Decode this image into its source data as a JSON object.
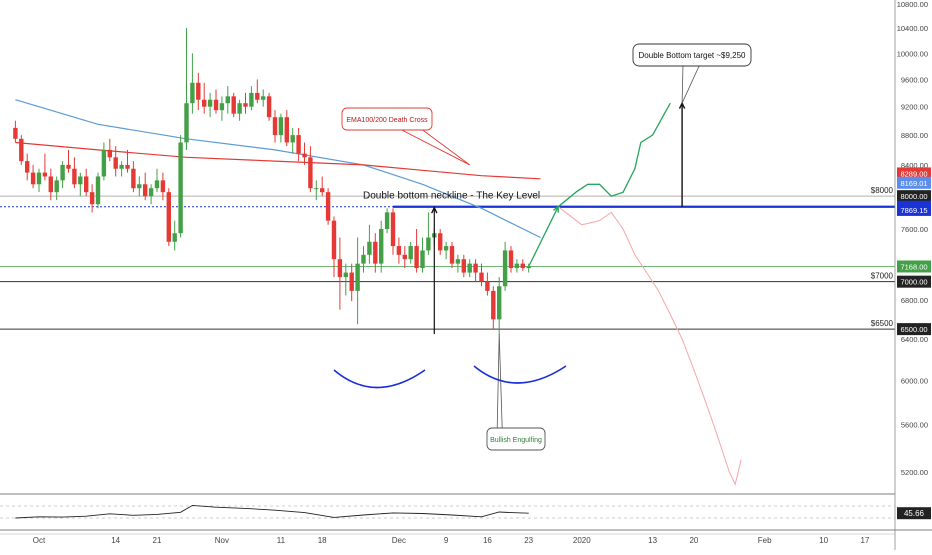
{
  "chart_data": {
    "type": "candlestick",
    "price_axis": {
      "ticks": [
        "10800.00",
        "10400.00",
        "10000.00",
        "9600.00",
        "9200.00",
        "8800.00",
        "8400.00",
        "7600.00",
        "6800.00",
        "6400.00",
        "6000.00",
        "5600.00",
        "5200.00"
      ],
      "tick_values": [
        10800,
        10400,
        10000,
        9600,
        9200,
        8800,
        8400,
        7600,
        6800,
        6400,
        6000,
        5600,
        5200
      ],
      "range": [
        4800,
        10900
      ],
      "scale": "log"
    },
    "time_axis": {
      "labels": [
        "Oct",
        "14",
        "21",
        "Nov",
        "11",
        "18",
        "Dec",
        "9",
        "16",
        "23",
        "2020",
        "13",
        "20",
        "Feb",
        "10",
        "17"
      ],
      "positions_days": [
        0,
        13,
        20,
        31,
        41,
        48,
        61,
        69,
        76,
        83,
        92,
        104,
        111,
        123,
        133,
        140
      ]
    },
    "candles": [
      {
        "d": -4,
        "o": 8900,
        "h": 9000,
        "l": 8700,
        "c": 8750
      },
      {
        "d": -3,
        "o": 8750,
        "h": 8800,
        "l": 8400,
        "c": 8450
      },
      {
        "d": -2,
        "o": 8450,
        "h": 8550,
        "l": 8200,
        "c": 8300
      },
      {
        "d": -1,
        "o": 8300,
        "h": 8400,
        "l": 8100,
        "c": 8150
      },
      {
        "d": 0,
        "o": 8150,
        "h": 8350,
        "l": 8050,
        "c": 8300
      },
      {
        "d": 1,
        "o": 8300,
        "h": 8550,
        "l": 8200,
        "c": 8250
      },
      {
        "d": 2,
        "o": 8250,
        "h": 8350,
        "l": 7950,
        "c": 8050
      },
      {
        "d": 3,
        "o": 8050,
        "h": 8250,
        "l": 7950,
        "c": 8200
      },
      {
        "d": 4,
        "o": 8200,
        "h": 8450,
        "l": 8100,
        "c": 8400
      },
      {
        "d": 5,
        "o": 8400,
        "h": 8600,
        "l": 8300,
        "c": 8350
      },
      {
        "d": 6,
        "o": 8350,
        "h": 8500,
        "l": 8100,
        "c": 8150
      },
      {
        "d": 7,
        "o": 8150,
        "h": 8300,
        "l": 8000,
        "c": 8250
      },
      {
        "d": 8,
        "o": 8250,
        "h": 8350,
        "l": 8000,
        "c": 8050
      },
      {
        "d": 9,
        "o": 8050,
        "h": 8150,
        "l": 7800,
        "c": 7900
      },
      {
        "d": 10,
        "o": 7900,
        "h": 8300,
        "l": 7850,
        "c": 8250
      },
      {
        "d": 11,
        "o": 8250,
        "h": 8700,
        "l": 8200,
        "c": 8600
      },
      {
        "d": 12,
        "o": 8600,
        "h": 8750,
        "l": 8450,
        "c": 8500
      },
      {
        "d": 13,
        "o": 8500,
        "h": 8650,
        "l": 8250,
        "c": 8350
      },
      {
        "d": 14,
        "o": 8350,
        "h": 8450,
        "l": 8250,
        "c": 8400
      },
      {
        "d": 15,
        "o": 8400,
        "h": 8600,
        "l": 8300,
        "c": 8350
      },
      {
        "d": 16,
        "o": 8350,
        "h": 8450,
        "l": 8050,
        "c": 8100
      },
      {
        "d": 17,
        "o": 8100,
        "h": 8250,
        "l": 8000,
        "c": 8150
      },
      {
        "d": 18,
        "o": 8150,
        "h": 8300,
        "l": 7950,
        "c": 8000
      },
      {
        "d": 19,
        "o": 8000,
        "h": 8150,
        "l": 7900,
        "c": 8100
      },
      {
        "d": 20,
        "o": 8100,
        "h": 8350,
        "l": 8050,
        "c": 8200
      },
      {
        "d": 21,
        "o": 8200,
        "h": 8300,
        "l": 7950,
        "c": 8050
      },
      {
        "d": 22,
        "o": 8050,
        "h": 8100,
        "l": 7400,
        "c": 7450
      },
      {
        "d": 23,
        "o": 7450,
        "h": 7700,
        "l": 7350,
        "c": 7550
      },
      {
        "d": 24,
        "o": 7550,
        "h": 8800,
        "l": 7500,
        "c": 8700
      },
      {
        "d": 25,
        "o": 8700,
        "h": 10400,
        "l": 8600,
        "c": 9250
      },
      {
        "d": 26,
        "o": 9250,
        "h": 10000,
        "l": 9100,
        "c": 9550
      },
      {
        "d": 27,
        "o": 9550,
        "h": 9700,
        "l": 9150,
        "c": 9300
      },
      {
        "d": 28,
        "o": 9300,
        "h": 9550,
        "l": 9100,
        "c": 9200
      },
      {
        "d": 29,
        "o": 9200,
        "h": 9400,
        "l": 9050,
        "c": 9300
      },
      {
        "d": 30,
        "o": 9300,
        "h": 9450,
        "l": 9100,
        "c": 9150
      },
      {
        "d": 31,
        "o": 9150,
        "h": 9350,
        "l": 9000,
        "c": 9250
      },
      {
        "d": 32,
        "o": 9250,
        "h": 9500,
        "l": 9100,
        "c": 9350
      },
      {
        "d": 33,
        "o": 9350,
        "h": 9400,
        "l": 9050,
        "c": 9100
      },
      {
        "d": 34,
        "o": 9100,
        "h": 9300,
        "l": 9000,
        "c": 9250
      },
      {
        "d": 35,
        "o": 9250,
        "h": 9400,
        "l": 9100,
        "c": 9200
      },
      {
        "d": 36,
        "o": 9200,
        "h": 9500,
        "l": 9150,
        "c": 9400
      },
      {
        "d": 37,
        "o": 9400,
        "h": 9600,
        "l": 9250,
        "c": 9300
      },
      {
        "d": 38,
        "o": 9300,
        "h": 9450,
        "l": 9200,
        "c": 9350
      },
      {
        "d": 39,
        "o": 9350,
        "h": 9400,
        "l": 9000,
        "c": 9050
      },
      {
        "d": 40,
        "o": 9050,
        "h": 9150,
        "l": 8700,
        "c": 8800
      },
      {
        "d": 41,
        "o": 8800,
        "h": 9100,
        "l": 8700,
        "c": 9050
      },
      {
        "d": 42,
        "o": 9050,
        "h": 9150,
        "l": 8650,
        "c": 8700
      },
      {
        "d": 43,
        "o": 8700,
        "h": 8900,
        "l": 8550,
        "c": 8800
      },
      {
        "d": 44,
        "o": 8800,
        "h": 8900,
        "l": 8450,
        "c": 8550
      },
      {
        "d": 45,
        "o": 8550,
        "h": 8700,
        "l": 8400,
        "c": 8500
      },
      {
        "d": 46,
        "o": 8500,
        "h": 8650,
        "l": 8050,
        "c": 8100
      },
      {
        "d": 47,
        "o": 8100,
        "h": 8200,
        "l": 7950,
        "c": 8100
      },
      {
        "d": 48,
        "o": 8100,
        "h": 8250,
        "l": 8000,
        "c": 8050
      },
      {
        "d": 49,
        "o": 8050,
        "h": 8100,
        "l": 7650,
        "c": 7700
      },
      {
        "d": 50,
        "o": 7700,
        "h": 7750,
        "l": 7050,
        "c": 7250
      },
      {
        "d": 51,
        "o": 7250,
        "h": 7500,
        "l": 6700,
        "c": 7050
      },
      {
        "d": 52,
        "o": 7050,
        "h": 7200,
        "l": 6850,
        "c": 7100
      },
      {
        "d": 53,
        "o": 7100,
        "h": 7200,
        "l": 6790,
        "c": 6900
      },
      {
        "d": 54,
        "o": 6900,
        "h": 7500,
        "l": 6550,
        "c": 7200
      },
      {
        "d": 55,
        "o": 7200,
        "h": 7400,
        "l": 7100,
        "c": 7300
      },
      {
        "d": 56,
        "o": 7300,
        "h": 7650,
        "l": 7200,
        "c": 7450
      },
      {
        "d": 57,
        "o": 7450,
        "h": 7550,
        "l": 7100,
        "c": 7200
      },
      {
        "d": 58,
        "o": 7200,
        "h": 7700,
        "l": 7100,
        "c": 7600
      },
      {
        "d": 59,
        "o": 7600,
        "h": 7850,
        "l": 7550,
        "c": 7800
      },
      {
        "d": 60,
        "o": 7800,
        "h": 7850,
        "l": 7300,
        "c": 7400
      },
      {
        "d": 61,
        "o": 7400,
        "h": 7500,
        "l": 7200,
        "c": 7300
      },
      {
        "d": 62,
        "o": 7300,
        "h": 7400,
        "l": 7150,
        "c": 7250
      },
      {
        "d": 63,
        "o": 7250,
        "h": 7450,
        "l": 7200,
        "c": 7400
      },
      {
        "d": 64,
        "o": 7400,
        "h": 7600,
        "l": 7100,
        "c": 7150
      },
      {
        "d": 65,
        "o": 7150,
        "h": 7500,
        "l": 7100,
        "c": 7350
      },
      {
        "d": 66,
        "o": 7350,
        "h": 7800,
        "l": 7300,
        "c": 7500
      },
      {
        "d": 67,
        "o": 7500,
        "h": 7600,
        "l": 7400,
        "c": 7550
      },
      {
        "d": 68,
        "o": 7550,
        "h": 7600,
        "l": 7300,
        "c": 7350
      },
      {
        "d": 69,
        "o": 7350,
        "h": 7450,
        "l": 7250,
        "c": 7400
      },
      {
        "d": 70,
        "o": 7400,
        "h": 7450,
        "l": 7150,
        "c": 7200
      },
      {
        "d": 71,
        "o": 7200,
        "h": 7300,
        "l": 7100,
        "c": 7250
      },
      {
        "d": 72,
        "o": 7250,
        "h": 7300,
        "l": 7050,
        "c": 7100
      },
      {
        "d": 73,
        "o": 7100,
        "h": 7250,
        "l": 7050,
        "c": 7200
      },
      {
        "d": 74,
        "o": 7200,
        "h": 7250,
        "l": 7000,
        "c": 7100
      },
      {
        "d": 75,
        "o": 7100,
        "h": 7200,
        "l": 6950,
        "c": 7000
      },
      {
        "d": 76,
        "o": 7000,
        "h": 7100,
        "l": 6850,
        "c": 6900
      },
      {
        "d": 77,
        "o": 6900,
        "h": 6950,
        "l": 6500,
        "c": 6600
      },
      {
        "d": 78,
        "o": 6600,
        "h": 7050,
        "l": 6450,
        "c": 6950
      },
      {
        "d": 79,
        "o": 6950,
        "h": 7450,
        "l": 6900,
        "c": 7350
      },
      {
        "d": 80,
        "o": 7350,
        "h": 7400,
        "l": 7100,
        "c": 7150
      },
      {
        "d": 81,
        "o": 7150,
        "h": 7250,
        "l": 7100,
        "c": 7200
      },
      {
        "d": 82,
        "o": 7200,
        "h": 7250,
        "l": 7120,
        "c": 7150
      },
      {
        "d": 83,
        "o": 7150,
        "h": 7200,
        "l": 7100,
        "c": 7168
      }
    ],
    "ema100": [
      [
        -4,
        9300
      ],
      [
        10,
        8950
      ],
      [
        25,
        8750
      ],
      [
        40,
        8600
      ],
      [
        55,
        8400
      ],
      [
        65,
        8150
      ],
      [
        75,
        7850
      ],
      [
        85,
        7500
      ]
    ],
    "ema200": [
      [
        -4,
        8700
      ],
      [
        10,
        8600
      ],
      [
        25,
        8500
      ],
      [
        40,
        8450
      ],
      [
        55,
        8400
      ],
      [
        65,
        8330
      ],
      [
        75,
        8260
      ],
      [
        85,
        8220
      ]
    ],
    "rsi": {
      "value_label": "45.66",
      "points": [
        [
          -4,
          30
        ],
        [
          0,
          34
        ],
        [
          4,
          33
        ],
        [
          8,
          36
        ],
        [
          12,
          44
        ],
        [
          16,
          39
        ],
        [
          20,
          42
        ],
        [
          24,
          49
        ],
        [
          26,
          72
        ],
        [
          30,
          66
        ],
        [
          35,
          62
        ],
        [
          40,
          56
        ],
        [
          45,
          48
        ],
        [
          50,
          32
        ],
        [
          55,
          40
        ],
        [
          60,
          47
        ],
        [
          65,
          45
        ],
        [
          70,
          40
        ],
        [
          75,
          34
        ],
        [
          78,
          50
        ],
        [
          80,
          48
        ],
        [
          83,
          46
        ]
      ]
    },
    "projection_bullish": [
      [
        83,
        7168
      ],
      [
        88,
        7870
      ],
      [
        91,
        8050
      ],
      [
        93,
        8150
      ],
      [
        95,
        8150
      ],
      [
        97,
        8000
      ],
      [
        99,
        8050
      ],
      [
        101,
        8350
      ],
      [
        102,
        8700
      ],
      [
        104,
        8800
      ],
      [
        106,
        9100
      ],
      [
        107,
        9250
      ]
    ],
    "projection_bearish": [
      [
        88,
        7870
      ],
      [
        92,
        7650
      ],
      [
        95,
        7700
      ],
      [
        97,
        7800
      ],
      [
        99,
        7600
      ],
      [
        101,
        7300
      ],
      [
        103,
        7100
      ],
      [
        105,
        6900
      ],
      [
        107,
        6650
      ],
      [
        109,
        6400
      ],
      [
        111,
        6100
      ],
      [
        113,
        5800
      ],
      [
        115,
        5500
      ],
      [
        117,
        5200
      ],
      [
        118,
        5100
      ],
      [
        119,
        5300
      ]
    ],
    "levels": [
      {
        "name": "neckline",
        "value": 7869.15,
        "color": "#1a33d6"
      },
      {
        "name": "support-7000",
        "value": 7000,
        "color": "#333333"
      },
      {
        "name": "support-6500",
        "value": 6500,
        "color": "#333333"
      },
      {
        "name": "resistance-8000",
        "value": 8000,
        "color": "#b0b0b0"
      },
      {
        "name": "current-7168",
        "value": 7168,
        "color": "#43a047"
      }
    ],
    "price_tags": [
      {
        "label": "8289.00",
        "value": 8289,
        "color": "#e53935"
      },
      {
        "label": "8169.01",
        "value": 8169.01,
        "color": "#5b8def"
      },
      {
        "label": "8000.00",
        "value": 8000,
        "color": "#222222"
      },
      {
        "label": "7869.15",
        "value": 7869.15,
        "color": "#1a33d6"
      },
      {
        "label": "7869.15",
        "value": 7830,
        "color": "#1a33d6"
      },
      {
        "label": "7168.00",
        "value": 7168,
        "color": "#43a047"
      },
      {
        "label": "7000.00",
        "value": 7000,
        "color": "#222222"
      },
      {
        "label": "6500.00",
        "value": 6500,
        "color": "#222222"
      }
    ],
    "level_labels": [
      {
        "text": "$8000",
        "value": 8000
      },
      {
        "text": "$7000",
        "value": 7000
      },
      {
        "text": "$6500",
        "value": 6500
      }
    ],
    "annotations": {
      "neckline_label": "Double bottom neckline - The Key Level",
      "target_box": "Double Bottom target ~$9,250",
      "death_cross_box": "EMA100/200 Death Cross",
      "engulfing_box": "Bullish Engulfing"
    },
    "colors": {
      "up": "#26a69a",
      "up_body": "#43a047",
      "down": "#e53935",
      "ema100": "#5b9bd5",
      "ema200": "#e53935",
      "bullish_projection": "#26a65b",
      "bearish_projection": "#f4a6a6",
      "bottom_arc": "#1a2fd6"
    }
  }
}
